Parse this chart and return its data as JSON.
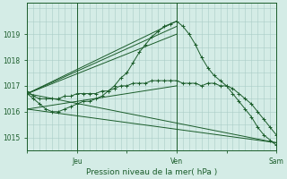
{
  "xlabel": "Pression niveau de la mer( hPa )",
  "background_color": "#d4ece6",
  "grid_color": "#aaccc6",
  "line_color": "#1a5c2a",
  "ylim": [
    1014.5,
    1020.2
  ],
  "yticks": [
    1015,
    1016,
    1017,
    1018,
    1019
  ],
  "xtick_labels": [
    "",
    "Jeu",
    "",
    "Ven",
    "",
    "Sam"
  ],
  "xtick_positions": [
    0,
    24,
    48,
    72,
    96,
    120
  ],
  "day_lines": [
    24,
    72,
    120
  ],
  "series": [
    {
      "x": [
        0,
        3,
        6,
        9,
        12,
        15,
        18,
        21,
        24,
        27,
        30,
        33,
        36,
        39,
        42,
        45,
        48,
        51,
        54,
        57,
        60,
        63,
        66,
        69,
        72,
        75,
        78,
        81,
        84,
        87,
        90,
        93,
        96,
        99,
        102,
        105,
        108,
        111,
        114,
        117,
        120
      ],
      "y": [
        1016.7,
        1016.5,
        1016.3,
        1016.1,
        1016.0,
        1016.0,
        1016.1,
        1016.2,
        1016.3,
        1016.4,
        1016.4,
        1016.5,
        1016.6,
        1016.8,
        1017.0,
        1017.3,
        1017.5,
        1017.9,
        1018.3,
        1018.6,
        1018.9,
        1019.1,
        1019.3,
        1019.4,
        1019.5,
        1019.3,
        1019.0,
        1018.6,
        1018.1,
        1017.7,
        1017.4,
        1017.2,
        1017.0,
        1016.7,
        1016.4,
        1016.1,
        1015.8,
        1015.4,
        1015.1,
        1014.9,
        1014.7
      ],
      "marker": "+"
    },
    {
      "x": [
        0,
        3,
        6,
        9,
        12,
        15,
        18,
        21,
        24,
        27,
        30,
        33,
        36,
        39,
        42,
        45,
        48,
        51,
        54,
        57,
        60,
        63,
        66,
        69,
        72,
        75,
        78,
        81,
        84,
        87,
        90,
        93,
        96,
        99,
        102,
        105,
        108,
        111,
        114,
        117,
        120
      ],
      "y": [
        1016.8,
        1016.6,
        1016.5,
        1016.5,
        1016.5,
        1016.5,
        1016.6,
        1016.6,
        1016.7,
        1016.7,
        1016.7,
        1016.7,
        1016.8,
        1016.8,
        1016.9,
        1017.0,
        1017.0,
        1017.1,
        1017.1,
        1017.1,
        1017.2,
        1017.2,
        1017.2,
        1017.2,
        1017.2,
        1017.1,
        1017.1,
        1017.1,
        1017.0,
        1017.1,
        1017.1,
        1017.0,
        1017.0,
        1016.9,
        1016.7,
        1016.5,
        1016.3,
        1016.0,
        1015.7,
        1015.4,
        1015.1
      ],
      "marker": "+"
    },
    {
      "x": [
        0,
        72
      ],
      "y": [
        1016.7,
        1019.5
      ],
      "marker": null
    },
    {
      "x": [
        0,
        72
      ],
      "y": [
        1016.7,
        1019.3
      ],
      "marker": null
    },
    {
      "x": [
        0,
        72
      ],
      "y": [
        1016.7,
        1019.0
      ],
      "marker": null
    },
    {
      "x": [
        0,
        72
      ],
      "y": [
        1016.1,
        1017.0
      ],
      "marker": null
    },
    {
      "x": [
        0,
        120
      ],
      "y": [
        1016.7,
        1014.8
      ],
      "marker": null
    },
    {
      "x": [
        0,
        120
      ],
      "y": [
        1016.1,
        1014.8
      ],
      "marker": null
    }
  ]
}
